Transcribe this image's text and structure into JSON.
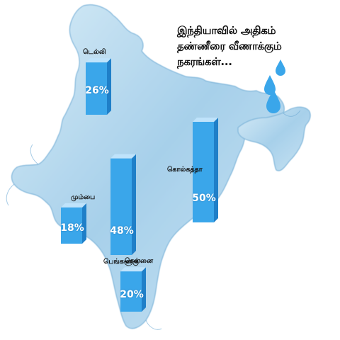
{
  "title_lines": [
    "இந்தியாவில் அதிகம்",
    "தண்ணீரை வீணாக்கும்",
    "நகரங்கள்..."
  ],
  "colors": {
    "bar_front": "#3aa6ea",
    "bar_side": "#1f7fc8",
    "bar_top": "#bfe3fb",
    "water": "#9fcbe6",
    "drop": "#3aa6ea"
  },
  "icons": [
    "india-water-map",
    "water-drop-icon"
  ],
  "chart_data": {
    "type": "bar",
    "categories": [
      "டெல்லி",
      "மும்பை",
      "பெங்களூரு",
      "கொல்கத்தா",
      "சென்னை"
    ],
    "values": [
      26,
      18,
      48,
      50,
      20
    ],
    "value_labels": [
      "26%",
      "18%",
      "48%",
      "50%",
      "20%"
    ],
    "title": "இந்தியாவில் அதிகம் தண்ணீரை வீணாக்கும் நகரங்கள்...",
    "xlabel": "",
    "ylabel": "",
    "ylim": [
      0,
      50
    ],
    "grid": false
  }
}
